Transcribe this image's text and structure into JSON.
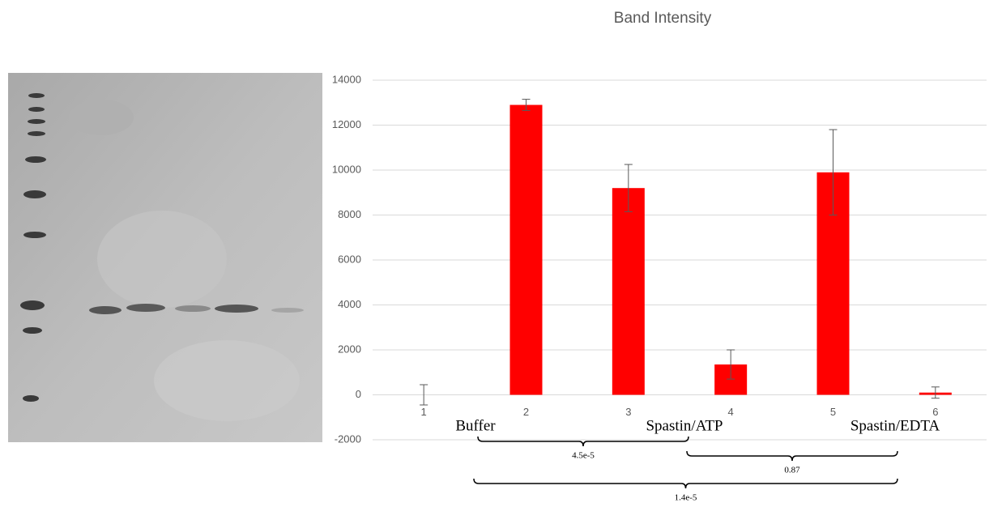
{
  "chart_data": {
    "type": "bar",
    "title": "Band Intensity",
    "categories": [
      "1",
      "2",
      "3",
      "4",
      "5",
      "6"
    ],
    "values": [
      0,
      12900,
      9200,
      1350,
      9900,
      100
    ],
    "errors": [
      450,
      250,
      1050,
      650,
      1900,
      250
    ],
    "color": "#ff0000",
    "ylim": [
      -2000,
      14000
    ],
    "yticks": [
      -2000,
      0,
      2000,
      4000,
      6000,
      8000,
      10000,
      12000,
      14000
    ],
    "grid": true,
    "groups": [
      "Buffer",
      "Spastin/ATP",
      "Spastin/EDTA"
    ],
    "comparisons": [
      "4.5e-5",
      "0.87",
      "1.4e-5"
    ]
  }
}
